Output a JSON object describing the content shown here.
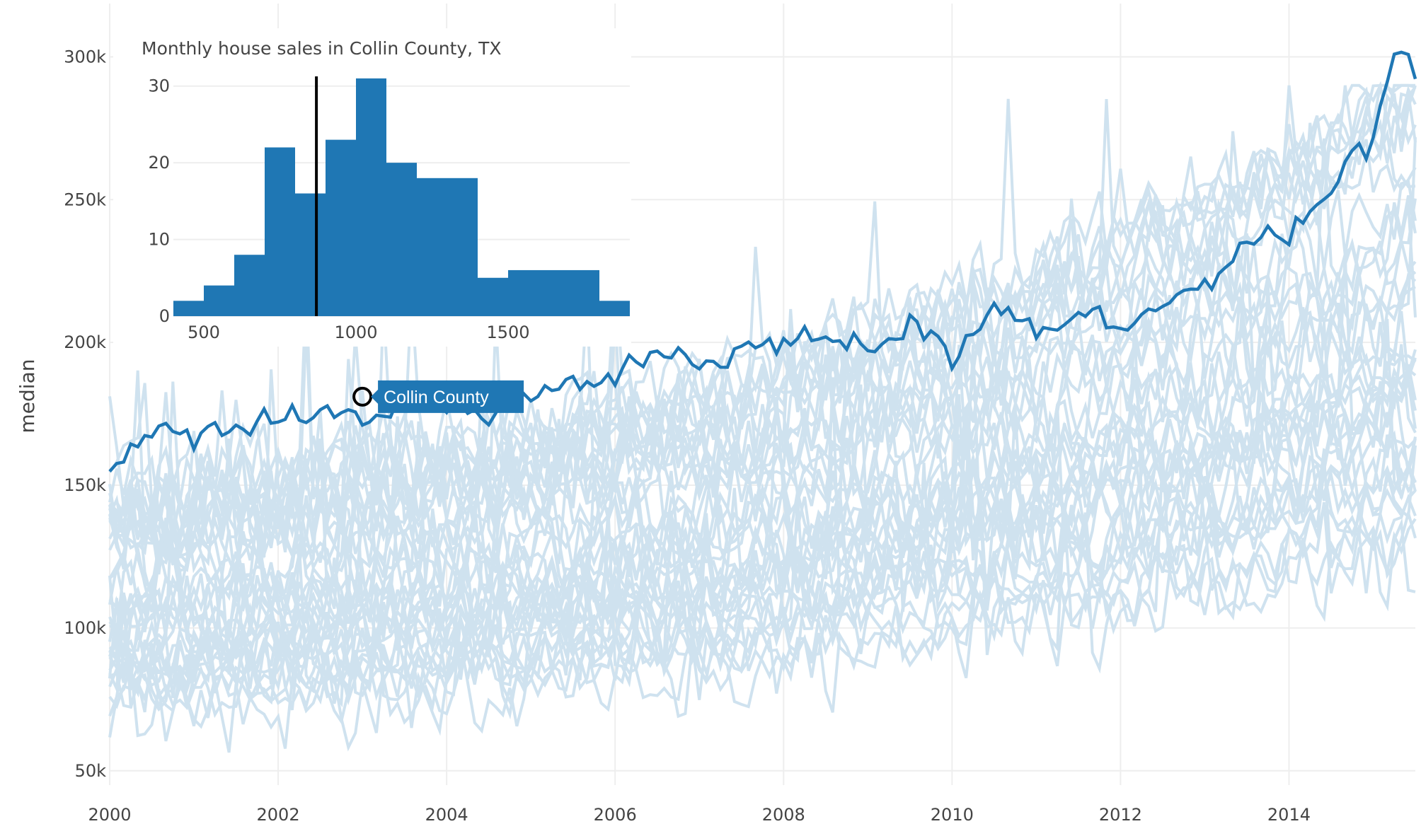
{
  "chart_data": [
    {
      "type": "line",
      "ylabel": "median",
      "xlabel": "",
      "x_range": [
        2000,
        2015.5
      ],
      "y_range": [
        45000,
        310000
      ],
      "x_ticks": [
        2000,
        2002,
        2004,
        2006,
        2008,
        2010,
        2012,
        2014
      ],
      "x_tick_labels": [
        "2000",
        "2002",
        "2004",
        "2006",
        "2008",
        "2010",
        "2012",
        "2014"
      ],
      "y_ticks": [
        50000,
        100000,
        150000,
        200000,
        250000,
        300000
      ],
      "y_tick_labels": [
        "50k",
        "100k",
        "150k",
        "200k",
        "250k",
        "300k"
      ],
      "grid": true,
      "colors": {
        "highlight": "#1f77b4",
        "background_series": "#cfe2ef",
        "grid": "#eeeeee"
      },
      "highlight_series": {
        "name": "Collin County",
        "x": [
          2000.0,
          2000.5,
          2001.0,
          2001.5,
          2002.0,
          2002.5,
          2003.0,
          2003.5,
          2004.0,
          2004.5,
          2005.0,
          2005.5,
          2006.0,
          2006.5,
          2007.0,
          2007.5,
          2008.0,
          2008.5,
          2009.0,
          2009.5,
          2010.0,
          2010.5,
          2011.0,
          2011.5,
          2012.0,
          2012.5,
          2013.0,
          2013.5,
          2014.0,
          2014.5,
          2015.0,
          2015.25,
          2015.5
        ],
        "values": [
          158000,
          167000,
          166000,
          172000,
          174000,
          178000,
          173000,
          178000,
          176000,
          175000,
          182000,
          185000,
          188000,
          196000,
          192000,
          199000,
          198000,
          204000,
          199000,
          207000,
          194000,
          216000,
          204000,
          213000,
          204000,
          218000,
          219000,
          233000,
          239000,
          255000,
          268000,
          306000,
          293000
        ]
      },
      "background_series_count": 40,
      "annotation": {
        "text": "Collin County",
        "x": 2003.0,
        "y": 181000
      }
    },
    {
      "type": "bar",
      "title": "Monthly house sales in Collin County, TX",
      "x_range": [
        400,
        1900
      ],
      "y_range": [
        0,
        32
      ],
      "x_ticks": [
        500,
        1000,
        1500
      ],
      "x_tick_labels": [
        "500",
        "1000",
        "1500"
      ],
      "y_ticks": [
        0,
        10,
        20,
        30
      ],
      "y_tick_labels": [
        "0",
        "10",
        "20",
        "30"
      ],
      "bin_width": 100,
      "bin_starts": [
        400,
        500,
        600,
        700,
        800,
        900,
        1000,
        1100,
        1200,
        1300,
        1400,
        1500,
        1600,
        1700,
        1800
      ],
      "values": [
        2,
        4,
        8,
        22,
        16,
        23,
        31,
        20,
        18,
        18,
        5,
        6,
        6,
        6,
        2
      ],
      "vline": {
        "x": 870,
        "color": "#000000"
      },
      "bar_color": "#1f77b4"
    }
  ]
}
